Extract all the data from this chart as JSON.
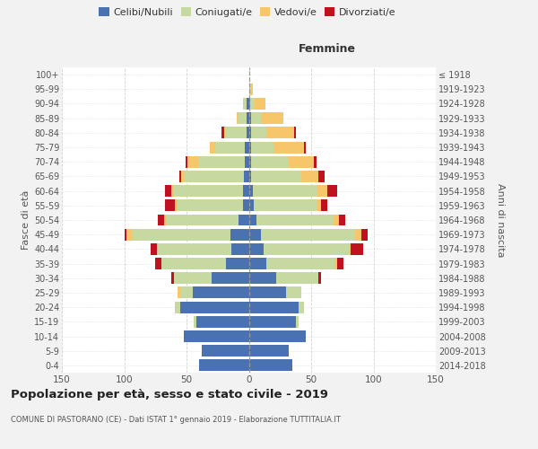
{
  "age_groups": [
    "0-4",
    "5-9",
    "10-14",
    "15-19",
    "20-24",
    "25-29",
    "30-34",
    "35-39",
    "40-44",
    "45-49",
    "50-54",
    "55-59",
    "60-64",
    "65-69",
    "70-74",
    "75-79",
    "80-84",
    "85-89",
    "90-94",
    "95-99",
    "100+"
  ],
  "birth_years": [
    "2014-2018",
    "2009-2013",
    "2004-2008",
    "1999-2003",
    "1994-1998",
    "1989-1993",
    "1984-1988",
    "1979-1983",
    "1974-1978",
    "1969-1973",
    "1964-1968",
    "1959-1963",
    "1954-1958",
    "1949-1953",
    "1944-1948",
    "1939-1943",
    "1934-1938",
    "1929-1933",
    "1924-1928",
    "1919-1923",
    "≤ 1918"
  ],
  "male_celibi": [
    40,
    38,
    52,
    42,
    55,
    45,
    30,
    18,
    14,
    15,
    8,
    5,
    5,
    4,
    3,
    3,
    2,
    2,
    2,
    0,
    0
  ],
  "male_coniugati": [
    0,
    0,
    0,
    2,
    4,
    10,
    30,
    52,
    60,
    78,
    58,
    52,
    55,
    48,
    38,
    24,
    16,
    6,
    3,
    0,
    0
  ],
  "male_vedovi": [
    0,
    0,
    0,
    0,
    0,
    2,
    0,
    0,
    0,
    5,
    2,
    2,
    2,
    2,
    8,
    4,
    2,
    2,
    0,
    0,
    0
  ],
  "male_divorziati": [
    0,
    0,
    0,
    0,
    0,
    0,
    2,
    5,
    5,
    2,
    5,
    8,
    5,
    2,
    2,
    0,
    2,
    0,
    0,
    0,
    0
  ],
  "female_celibi": [
    35,
    32,
    46,
    38,
    40,
    30,
    22,
    14,
    12,
    10,
    6,
    4,
    3,
    2,
    2,
    2,
    2,
    2,
    1,
    0,
    0
  ],
  "female_coniugati": [
    0,
    0,
    0,
    2,
    4,
    12,
    34,
    55,
    68,
    75,
    62,
    50,
    52,
    40,
    30,
    18,
    12,
    8,
    4,
    1,
    0
  ],
  "female_vedovi": [
    0,
    0,
    0,
    0,
    0,
    0,
    0,
    2,
    2,
    5,
    4,
    4,
    8,
    14,
    20,
    24,
    22,
    18,
    8,
    2,
    0
  ],
  "female_divorziati": [
    0,
    0,
    0,
    0,
    0,
    0,
    2,
    5,
    10,
    5,
    5,
    5,
    8,
    5,
    2,
    2,
    2,
    0,
    0,
    0,
    0
  ],
  "color_celibi": "#4a72b0",
  "color_coniugati": "#c5d9a0",
  "color_vedovi": "#f5c76a",
  "color_divorziati": "#c0111f",
  "title": "Popolazione per età, sesso e stato civile - 2019",
  "subtitle": "COMUNE DI PASTORANO (CE) - Dati ISTAT 1° gennaio 2019 - Elaborazione TUTTITALIA.IT",
  "xlabel_right": "Femmine",
  "ylabel_left": "Fasce di età",
  "ylabel_right": "Anni di nascita",
  "xlim": 150,
  "bg_color": "#f2f2f2",
  "plot_bg_color": "#ffffff",
  "legend_labels": [
    "Celibi/Nubili",
    "Coniugati/e",
    "Vedovi/e",
    "Divorziati/e"
  ],
  "grid_color": "#cccccc"
}
